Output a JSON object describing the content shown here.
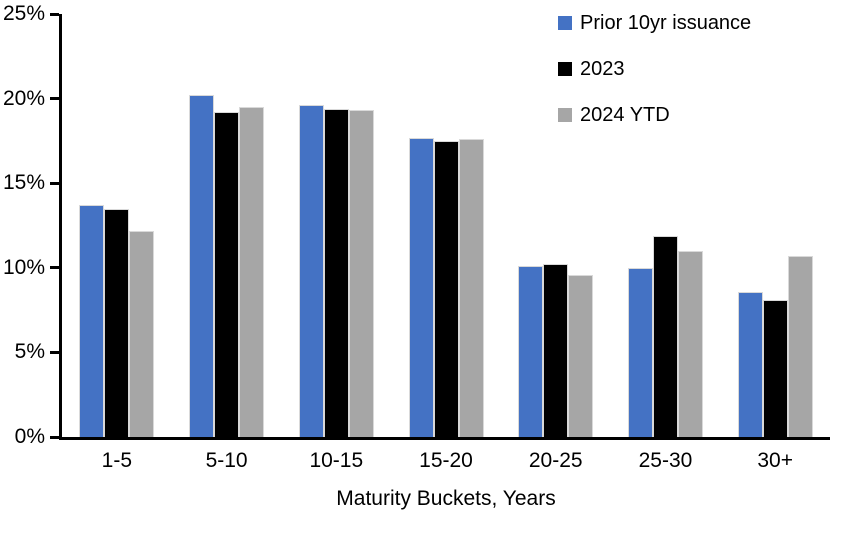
{
  "chart_data": {
    "type": "bar",
    "title": "",
    "xlabel": "Maturity Buckets, Years",
    "ylabel": "",
    "ylim": [
      0,
      25
    ],
    "ytick_step": 5,
    "ytick_labels": [
      "0%",
      "5%",
      "10%",
      "15%",
      "20%",
      "25%"
    ],
    "grid": false,
    "legend_position": "top-right",
    "categories": [
      "1-5",
      "5-10",
      "10-15",
      "15-20",
      "20-25",
      "25-30",
      "30+"
    ],
    "series": [
      {
        "name": "Prior 10yr issuance",
        "color": "#4472C4",
        "values": [
          13.7,
          20.2,
          19.6,
          17.7,
          10.1,
          10.0,
          8.6
        ]
      },
      {
        "name": "2023",
        "color": "#000000",
        "values": [
          13.5,
          19.2,
          19.4,
          17.5,
          10.2,
          11.9,
          8.1
        ]
      },
      {
        "name": "2024 YTD",
        "color": "#A6A6A6",
        "values": [
          12.2,
          19.5,
          19.3,
          17.6,
          9.6,
          11.0,
          10.7
        ]
      }
    ],
    "axis_color": "#000000"
  }
}
